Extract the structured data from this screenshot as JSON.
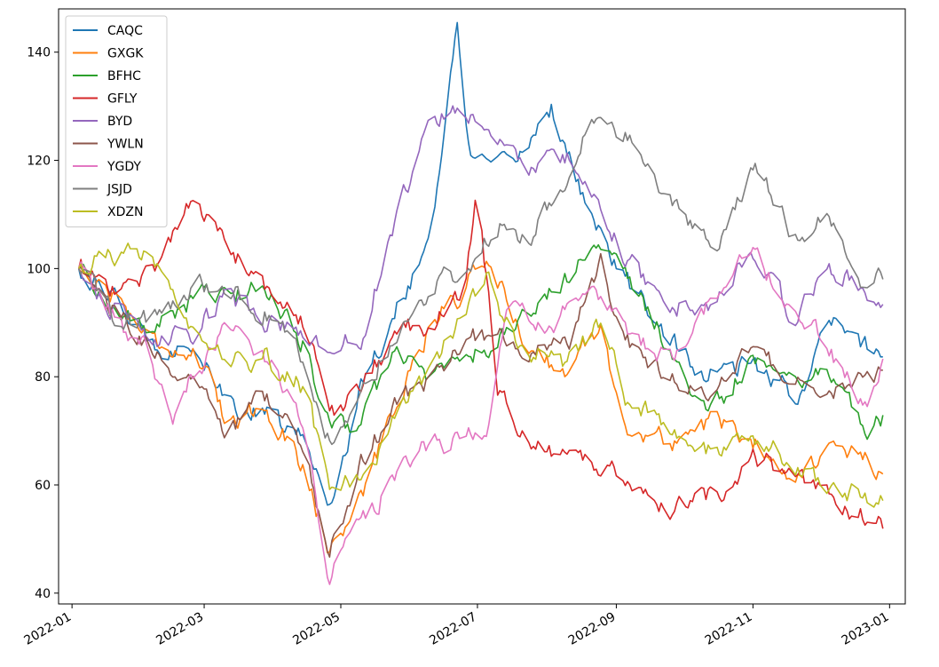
{
  "chart_data": {
    "type": "line",
    "title": "",
    "xlabel": "",
    "ylabel": "",
    "x_start": "2022-01-04",
    "x_end": "2022-12-30",
    "xlim": [
      "2021-12-26",
      "2023-01-08"
    ],
    "ylim": [
      38,
      148
    ],
    "y_ticks": [
      40,
      60,
      80,
      100,
      120,
      140
    ],
    "x_ticks": [
      {
        "date": "2022-01-01",
        "label": "2022-01"
      },
      {
        "date": "2022-03-01",
        "label": "2022-03"
      },
      {
        "date": "2022-05-01",
        "label": "2022-05"
      },
      {
        "date": "2022-07-01",
        "label": "2022-07"
      },
      {
        "date": "2022-09-01",
        "label": "2022-09"
      },
      {
        "date": "2022-11-01",
        "label": "2022-11"
      },
      {
        "date": "2023-01-01",
        "label": "2023-01"
      }
    ],
    "legend_position": "top-left",
    "series": [
      {
        "name": "CAQC",
        "color": "#1f77b4",
        "anchors": [
          [
            "2022-01-04",
            100
          ],
          [
            "2022-01-20",
            94
          ],
          [
            "2022-02-05",
            86
          ],
          [
            "2022-02-25",
            86
          ],
          [
            "2022-03-10",
            75
          ],
          [
            "2022-03-28",
            73
          ],
          [
            "2022-04-15",
            68
          ],
          [
            "2022-04-26",
            56
          ],
          [
            "2022-05-10",
            78
          ],
          [
            "2022-05-25",
            92
          ],
          [
            "2022-06-10",
            106
          ],
          [
            "2022-06-22",
            145
          ],
          [
            "2022-06-28",
            120
          ],
          [
            "2022-07-15",
            118
          ],
          [
            "2022-08-03",
            130
          ],
          [
            "2022-08-20",
            110
          ],
          [
            "2022-09-01",
            100
          ],
          [
            "2022-09-20",
            90
          ],
          [
            "2022-10-10",
            80
          ],
          [
            "2022-11-01",
            82
          ],
          [
            "2022-11-20",
            76
          ],
          [
            "2022-12-05",
            90
          ],
          [
            "2022-12-20",
            86
          ],
          [
            "2022-12-30",
            84
          ]
        ]
      },
      {
        "name": "GXGK",
        "color": "#ff7f0e",
        "anchors": [
          [
            "2022-01-04",
            100
          ],
          [
            "2022-01-20",
            95
          ],
          [
            "2022-02-05",
            87
          ],
          [
            "2022-02-25",
            84
          ],
          [
            "2022-03-10",
            72
          ],
          [
            "2022-03-28",
            75
          ],
          [
            "2022-04-15",
            63
          ],
          [
            "2022-04-26",
            48
          ],
          [
            "2022-05-10",
            58
          ],
          [
            "2022-05-25",
            74
          ],
          [
            "2022-06-10",
            90
          ],
          [
            "2022-06-25",
            96
          ],
          [
            "2022-07-05",
            103
          ],
          [
            "2022-07-20",
            88
          ],
          [
            "2022-08-10",
            80
          ],
          [
            "2022-08-25",
            90
          ],
          [
            "2022-09-05",
            70
          ],
          [
            "2022-09-25",
            68
          ],
          [
            "2022-10-15",
            72
          ],
          [
            "2022-11-01",
            68
          ],
          [
            "2022-11-20",
            62
          ],
          [
            "2022-12-05",
            66
          ],
          [
            "2022-12-20",
            65
          ],
          [
            "2022-12-30",
            60
          ]
        ]
      },
      {
        "name": "BFHC",
        "color": "#2ca02c",
        "anchors": [
          [
            "2022-01-04",
            100
          ],
          [
            "2022-01-20",
            93
          ],
          [
            "2022-02-05",
            88
          ],
          [
            "2022-02-25",
            95
          ],
          [
            "2022-03-10",
            94
          ],
          [
            "2022-03-28",
            97
          ],
          [
            "2022-04-15",
            86
          ],
          [
            "2022-04-26",
            70
          ],
          [
            "2022-05-10",
            72
          ],
          [
            "2022-05-25",
            84
          ],
          [
            "2022-06-10",
            80
          ],
          [
            "2022-06-25",
            84
          ],
          [
            "2022-07-05",
            85
          ],
          [
            "2022-07-20",
            90
          ],
          [
            "2022-08-10",
            98
          ],
          [
            "2022-08-20",
            106
          ],
          [
            "2022-09-05",
            98
          ],
          [
            "2022-09-25",
            85
          ],
          [
            "2022-10-12",
            72
          ],
          [
            "2022-11-01",
            84
          ],
          [
            "2022-11-20",
            80
          ],
          [
            "2022-12-05",
            82
          ],
          [
            "2022-12-20",
            70
          ],
          [
            "2022-12-30",
            72
          ]
        ]
      },
      {
        "name": "GFLY",
        "color": "#d62728",
        "anchors": [
          [
            "2022-01-04",
            100
          ],
          [
            "2022-01-20",
            96
          ],
          [
            "2022-02-05",
            99
          ],
          [
            "2022-02-22",
            112
          ],
          [
            "2022-03-05",
            108
          ],
          [
            "2022-03-28",
            96
          ],
          [
            "2022-04-15",
            90
          ],
          [
            "2022-04-26",
            72
          ],
          [
            "2022-05-10",
            78
          ],
          [
            "2022-05-25",
            88
          ],
          [
            "2022-06-10",
            90
          ],
          [
            "2022-06-25",
            96
          ],
          [
            "2022-07-01",
            116
          ],
          [
            "2022-07-10",
            76
          ],
          [
            "2022-08-01",
            66
          ],
          [
            "2022-08-20",
            64
          ],
          [
            "2022-09-05",
            62
          ],
          [
            "2022-09-25",
            56
          ],
          [
            "2022-10-15",
            58
          ],
          [
            "2022-11-01",
            66
          ],
          [
            "2022-11-20",
            60
          ],
          [
            "2022-12-05",
            58
          ],
          [
            "2022-12-20",
            54
          ],
          [
            "2022-12-30",
            52
          ]
        ]
      },
      {
        "name": "BYD",
        "color": "#9467bd",
        "anchors": [
          [
            "2022-01-04",
            100
          ],
          [
            "2022-01-20",
            92
          ],
          [
            "2022-02-05",
            86
          ],
          [
            "2022-02-25",
            88
          ],
          [
            "2022-03-10",
            95
          ],
          [
            "2022-03-28",
            90
          ],
          [
            "2022-04-15",
            88
          ],
          [
            "2022-04-26",
            84
          ],
          [
            "2022-05-10",
            88
          ],
          [
            "2022-05-25",
            108
          ],
          [
            "2022-06-10",
            128
          ],
          [
            "2022-06-25",
            130
          ],
          [
            "2022-07-10",
            122
          ],
          [
            "2022-07-25",
            118
          ],
          [
            "2022-08-10",
            120
          ],
          [
            "2022-08-25",
            112
          ],
          [
            "2022-09-05",
            102
          ],
          [
            "2022-09-25",
            93
          ],
          [
            "2022-10-15",
            93
          ],
          [
            "2022-11-01",
            103
          ],
          [
            "2022-11-20",
            90
          ],
          [
            "2022-12-05",
            101
          ],
          [
            "2022-12-20",
            96
          ],
          [
            "2022-12-30",
            95
          ]
        ]
      },
      {
        "name": "YWLN",
        "color": "#8c564b",
        "anchors": [
          [
            "2022-01-04",
            100
          ],
          [
            "2022-01-20",
            92
          ],
          [
            "2022-02-05",
            84
          ],
          [
            "2022-02-25",
            80
          ],
          [
            "2022-03-10",
            70
          ],
          [
            "2022-03-28",
            76
          ],
          [
            "2022-04-15",
            66
          ],
          [
            "2022-04-26",
            47
          ],
          [
            "2022-05-10",
            64
          ],
          [
            "2022-05-25",
            74
          ],
          [
            "2022-06-10",
            80
          ],
          [
            "2022-06-25",
            86
          ],
          [
            "2022-07-05",
            88
          ],
          [
            "2022-07-20",
            85
          ],
          [
            "2022-08-10",
            85
          ],
          [
            "2022-08-25",
            100
          ],
          [
            "2022-09-05",
            86
          ],
          [
            "2022-09-25",
            80
          ],
          [
            "2022-10-15",
            76
          ],
          [
            "2022-11-01",
            86
          ],
          [
            "2022-11-20",
            78
          ],
          [
            "2022-12-05",
            76
          ],
          [
            "2022-12-20",
            82
          ],
          [
            "2022-12-30",
            80
          ]
        ]
      },
      {
        "name": "YGDY",
        "color": "#e377c2",
        "anchors": [
          [
            "2022-01-04",
            100
          ],
          [
            "2022-01-20",
            90
          ],
          [
            "2022-02-05",
            84
          ],
          [
            "2022-02-15",
            71
          ],
          [
            "2022-02-25",
            82
          ],
          [
            "2022-03-10",
            88
          ],
          [
            "2022-03-28",
            84
          ],
          [
            "2022-04-15",
            70
          ],
          [
            "2022-04-26",
            43
          ],
          [
            "2022-05-10",
            52
          ],
          [
            "2022-05-25",
            62
          ],
          [
            "2022-06-10",
            68
          ],
          [
            "2022-06-25",
            68
          ],
          [
            "2022-07-05",
            70
          ],
          [
            "2022-07-15",
            92
          ],
          [
            "2022-08-01",
            88
          ],
          [
            "2022-08-20",
            96
          ],
          [
            "2022-09-05",
            88
          ],
          [
            "2022-09-25",
            84
          ],
          [
            "2022-10-15",
            95
          ],
          [
            "2022-11-01",
            103
          ],
          [
            "2022-11-20",
            90
          ],
          [
            "2022-12-05",
            86
          ],
          [
            "2022-12-20",
            74
          ],
          [
            "2022-12-30",
            82
          ]
        ]
      },
      {
        "name": "JSJD",
        "color": "#7f7f7f",
        "anchors": [
          [
            "2022-01-04",
            100
          ],
          [
            "2022-01-20",
            91
          ],
          [
            "2022-02-05",
            90
          ],
          [
            "2022-02-25",
            98
          ],
          [
            "2022-03-10",
            96
          ],
          [
            "2022-03-28",
            92
          ],
          [
            "2022-04-15",
            82
          ],
          [
            "2022-04-26",
            68
          ],
          [
            "2022-05-10",
            78
          ],
          [
            "2022-05-25",
            88
          ],
          [
            "2022-06-10",
            96
          ],
          [
            "2022-06-25",
            100
          ],
          [
            "2022-07-10",
            108
          ],
          [
            "2022-07-25",
            106
          ],
          [
            "2022-08-10",
            118
          ],
          [
            "2022-08-20",
            128
          ],
          [
            "2022-09-05",
            124
          ],
          [
            "2022-09-25",
            112
          ],
          [
            "2022-10-15",
            102
          ],
          [
            "2022-11-01",
            120
          ],
          [
            "2022-11-20",
            106
          ],
          [
            "2022-12-05",
            110
          ],
          [
            "2022-12-20",
            94
          ],
          [
            "2022-12-30",
            99
          ]
        ]
      },
      {
        "name": "XDZN",
        "color": "#bcbd22",
        "anchors": [
          [
            "2022-01-04",
            100
          ],
          [
            "2022-01-15",
            102
          ],
          [
            "2022-01-25",
            104
          ],
          [
            "2022-02-05",
            101
          ],
          [
            "2022-02-25",
            86
          ],
          [
            "2022-03-10",
            82
          ],
          [
            "2022-03-28",
            84
          ],
          [
            "2022-04-15",
            78
          ],
          [
            "2022-04-26",
            58
          ],
          [
            "2022-05-10",
            62
          ],
          [
            "2022-05-25",
            72
          ],
          [
            "2022-06-10",
            82
          ],
          [
            "2022-06-25",
            92
          ],
          [
            "2022-07-05",
            98
          ],
          [
            "2022-07-20",
            86
          ],
          [
            "2022-08-10",
            82
          ],
          [
            "2022-08-25",
            90
          ],
          [
            "2022-09-05",
            76
          ],
          [
            "2022-09-25",
            70
          ],
          [
            "2022-10-15",
            66
          ],
          [
            "2022-11-01",
            70
          ],
          [
            "2022-11-20",
            64
          ],
          [
            "2022-12-05",
            60
          ],
          [
            "2022-12-20",
            58
          ],
          [
            "2022-12-30",
            57
          ]
        ]
      }
    ]
  }
}
